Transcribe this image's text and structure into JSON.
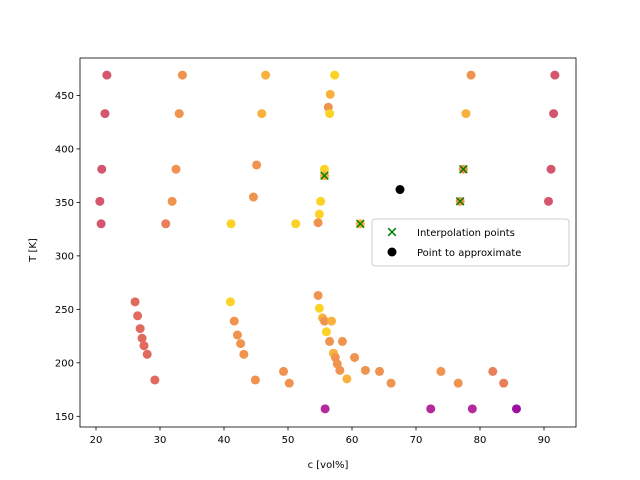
{
  "chart_data": {
    "type": "scatter",
    "xlabel": "c [vol%]",
    "ylabel": "T [K]",
    "xlim": [
      17.5,
      95
    ],
    "ylim": [
      140,
      485
    ],
    "xticks": [
      20,
      30,
      40,
      50,
      60,
      70,
      80,
      90
    ],
    "yticks": [
      150,
      200,
      250,
      300,
      350,
      400,
      450
    ],
    "grid": false,
    "legend_position": "center-right",
    "series": [
      {
        "kind": "data-points",
        "points": [
          {
            "x": 21.7,
            "y": 469,
            "color": "#d4566e"
          },
          {
            "x": 33.5,
            "y": 469,
            "color": "#f0934e"
          },
          {
            "x": 46.5,
            "y": 469,
            "color": "#f8b13c"
          },
          {
            "x": 57.3,
            "y": 469,
            "color": "#fcd225"
          },
          {
            "x": 78.6,
            "y": 469,
            "color": "#f0934e"
          },
          {
            "x": 91.7,
            "y": 469,
            "color": "#d4566e"
          },
          {
            "x": 56.6,
            "y": 451,
            "color": "#f8b13c"
          },
          {
            "x": 21.4,
            "y": 433,
            "color": "#d4566e"
          },
          {
            "x": 33.0,
            "y": 433,
            "color": "#f0934e"
          },
          {
            "x": 45.9,
            "y": 433,
            "color": "#f8b13c"
          },
          {
            "x": 56.3,
            "y": 439,
            "color": "#f0934e"
          },
          {
            "x": 56.5,
            "y": 433,
            "color": "#fcd225"
          },
          {
            "x": 77.8,
            "y": 433,
            "color": "#f8b13c"
          },
          {
            "x": 91.5,
            "y": 433,
            "color": "#d4566e"
          },
          {
            "x": 20.9,
            "y": 381,
            "color": "#d4566e"
          },
          {
            "x": 32.5,
            "y": 381,
            "color": "#f0934e"
          },
          {
            "x": 45.1,
            "y": 385,
            "color": "#f0934e"
          },
          {
            "x": 55.7,
            "y": 381,
            "color": "#fcd225"
          },
          {
            "x": 55.7,
            "y": 375,
            "color": "#f8b13c"
          },
          {
            "x": 77.4,
            "y": 381,
            "color": "#f0934e"
          },
          {
            "x": 91.1,
            "y": 381,
            "color": "#d4566e"
          },
          {
            "x": 20.6,
            "y": 351,
            "color": "#d4566e"
          },
          {
            "x": 31.9,
            "y": 351,
            "color": "#f0934e"
          },
          {
            "x": 44.6,
            "y": 355,
            "color": "#f0934e"
          },
          {
            "x": 55.1,
            "y": 351,
            "color": "#fcd225"
          },
          {
            "x": 76.9,
            "y": 351,
            "color": "#f0934e"
          },
          {
            "x": 90.7,
            "y": 351,
            "color": "#d4566e"
          },
          {
            "x": 20.8,
            "y": 330,
            "color": "#d4566e"
          },
          {
            "x": 30.9,
            "y": 330,
            "color": "#e8805a"
          },
          {
            "x": 41.1,
            "y": 330,
            "color": "#fcd225"
          },
          {
            "x": 51.2,
            "y": 330,
            "color": "#fcd225"
          },
          {
            "x": 54.9,
            "y": 339,
            "color": "#fcd225"
          },
          {
            "x": 54.7,
            "y": 331,
            "color": "#f0934e"
          },
          {
            "x": 61.3,
            "y": 330,
            "color": "#f8b13c"
          },
          {
            "x": 26.1,
            "y": 257,
            "color": "#e06a5e"
          },
          {
            "x": 26.5,
            "y": 244,
            "color": "#e06a5e"
          },
          {
            "x": 26.9,
            "y": 232,
            "color": "#e06a5e"
          },
          {
            "x": 27.2,
            "y": 223,
            "color": "#e06a5e"
          },
          {
            "x": 27.5,
            "y": 216,
            "color": "#e06a5e"
          },
          {
            "x": 28.0,
            "y": 208,
            "color": "#e06a5e"
          },
          {
            "x": 29.2,
            "y": 184,
            "color": "#e06a5e"
          },
          {
            "x": 41.0,
            "y": 257,
            "color": "#fcd225"
          },
          {
            "x": 41.6,
            "y": 239,
            "color": "#f0934e"
          },
          {
            "x": 42.1,
            "y": 226,
            "color": "#f0934e"
          },
          {
            "x": 42.6,
            "y": 218,
            "color": "#f0934e"
          },
          {
            "x": 43.1,
            "y": 208,
            "color": "#f0934e"
          },
          {
            "x": 44.9,
            "y": 184,
            "color": "#f0934e"
          },
          {
            "x": 49.3,
            "y": 192,
            "color": "#f0934e"
          },
          {
            "x": 50.2,
            "y": 181,
            "color": "#f0934e"
          },
          {
            "x": 54.7,
            "y": 263,
            "color": "#f0934e"
          },
          {
            "x": 54.9,
            "y": 251,
            "color": "#fcd225"
          },
          {
            "x": 55.4,
            "y": 242,
            "color": "#f8b13c"
          },
          {
            "x": 55.7,
            "y": 239,
            "color": "#f0934e"
          },
          {
            "x": 56.0,
            "y": 229,
            "color": "#fcd225"
          },
          {
            "x": 56.8,
            "y": 239,
            "color": "#f8b13c"
          },
          {
            "x": 56.5,
            "y": 220,
            "color": "#f0934e"
          },
          {
            "x": 57.1,
            "y": 209,
            "color": "#f8b13c"
          },
          {
            "x": 57.4,
            "y": 205,
            "color": "#f0934e"
          },
          {
            "x": 57.7,
            "y": 199,
            "color": "#f0934e"
          },
          {
            "x": 58.1,
            "y": 193,
            "color": "#f0934e"
          },
          {
            "x": 58.5,
            "y": 220,
            "color": "#f0934e"
          },
          {
            "x": 59.2,
            "y": 185,
            "color": "#f8b13c"
          },
          {
            "x": 60.4,
            "y": 205,
            "color": "#f0934e"
          },
          {
            "x": 62.1,
            "y": 193,
            "color": "#f0934e"
          },
          {
            "x": 64.3,
            "y": 192,
            "color": "#f0934e"
          },
          {
            "x": 66.1,
            "y": 181,
            "color": "#f0934e"
          },
          {
            "x": 73.9,
            "y": 192,
            "color": "#f0934e"
          },
          {
            "x": 76.6,
            "y": 181,
            "color": "#f0934e"
          },
          {
            "x": 82.0,
            "y": 192,
            "color": "#e8805a"
          },
          {
            "x": 83.7,
            "y": 181,
            "color": "#e8805a"
          },
          {
            "x": 55.8,
            "y": 157,
            "color": "#b52a9a"
          },
          {
            "x": 72.3,
            "y": 157,
            "color": "#b52a9a"
          },
          {
            "x": 78.8,
            "y": 157,
            "color": "#b52a9a"
          },
          {
            "x": 85.7,
            "y": 157,
            "color": "#9d0fa3"
          }
        ]
      },
      {
        "name": "Interpolation points",
        "marker": "x",
        "color": "#008000",
        "points": [
          {
            "x": 55.7,
            "y": 375
          },
          {
            "x": 61.3,
            "y": 330
          },
          {
            "x": 77.4,
            "y": 381
          },
          {
            "x": 76.9,
            "y": 351
          }
        ]
      },
      {
        "name": "Point to approximate",
        "marker": "o",
        "color": "#000000",
        "points": [
          {
            "x": 67.5,
            "y": 362
          }
        ]
      }
    ]
  }
}
